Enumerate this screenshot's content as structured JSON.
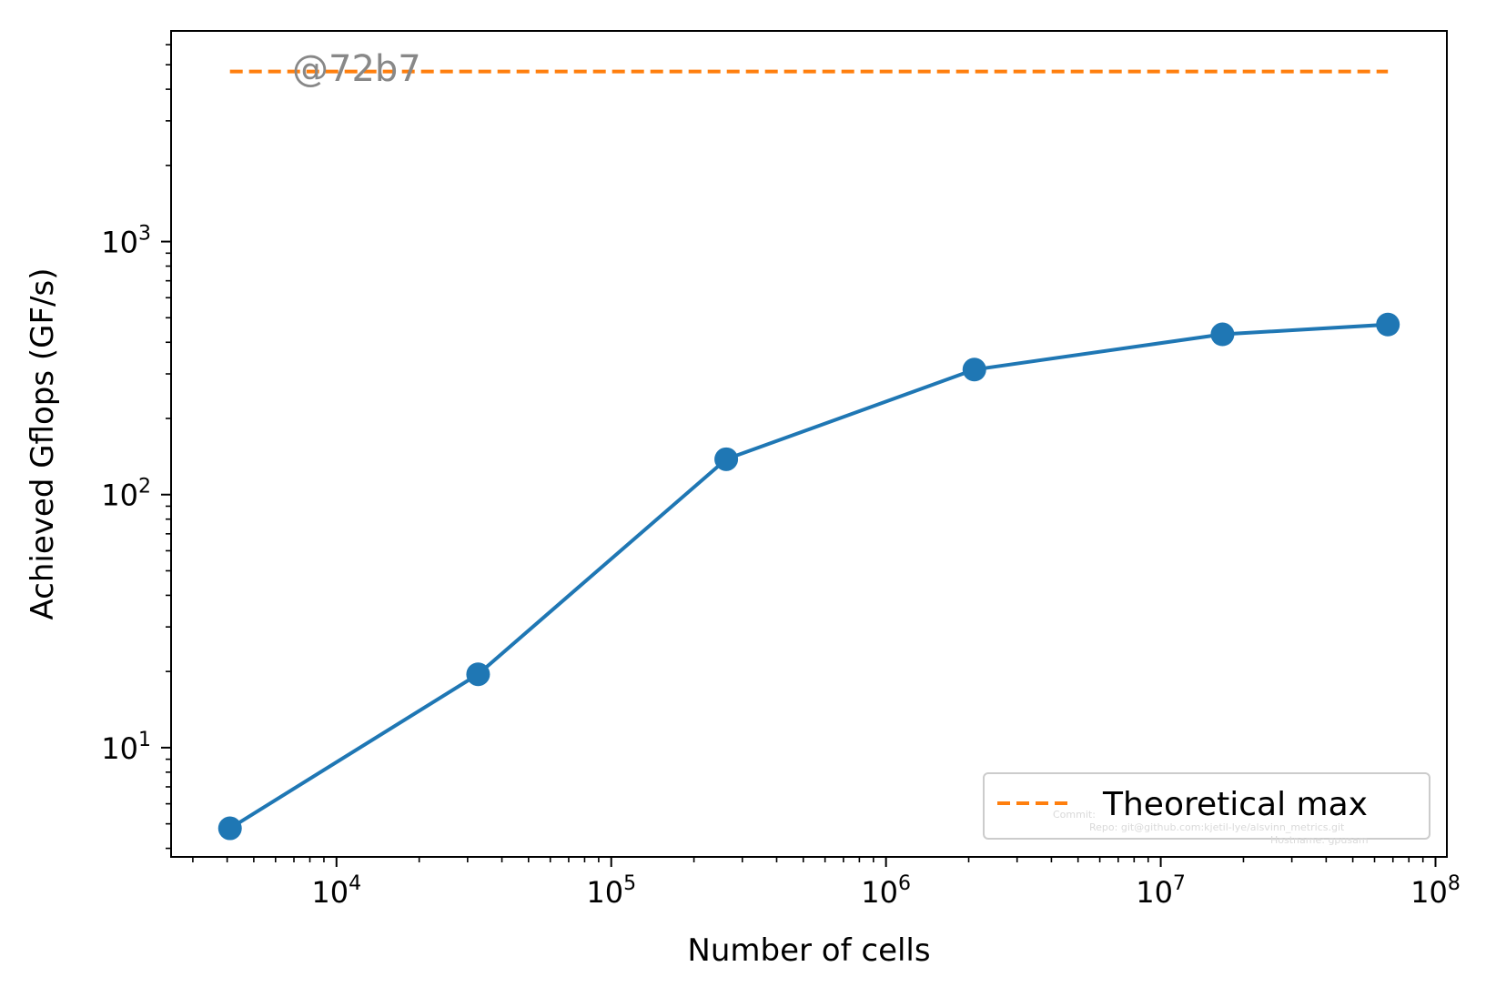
{
  "chart_data": {
    "type": "line",
    "xlabel": "Number of cells",
    "ylabel": "Achieved Gflops (GF/s)",
    "xscale": "log",
    "yscale": "log",
    "xlim": [
      2500,
      110000000
    ],
    "ylim": [
      3.7,
      6800
    ],
    "x_ticks": [
      {
        "base": "10",
        "exp": "4",
        "value": 10000
      },
      {
        "base": "10",
        "exp": "5",
        "value": 100000
      },
      {
        "base": "10",
        "exp": "6",
        "value": 1000000
      },
      {
        "base": "10",
        "exp": "7",
        "value": 10000000
      },
      {
        "base": "10",
        "exp": "8",
        "value": 100000000
      }
    ],
    "y_ticks": [
      {
        "base": "10",
        "exp": "1",
        "value": 10
      },
      {
        "base": "10",
        "exp": "2",
        "value": 100
      },
      {
        "base": "10",
        "exp": "3",
        "value": 1000
      }
    ],
    "series": [
      {
        "name": "",
        "color": "#1f77b4",
        "style": "solid-with-markers",
        "x": [
          4096,
          32768,
          262144,
          2097152,
          16777216,
          67108864
        ],
        "y": [
          4.8,
          19.5,
          138,
          312,
          430,
          470
        ]
      },
      {
        "name": "Theoretical max",
        "color": "#ff7f0e",
        "style": "dashed",
        "x": [
          4096,
          67108864
        ],
        "y": [
          4700,
          4700
        ]
      }
    ],
    "legend": {
      "position": "lower-right",
      "entries": [
        {
          "label": "Theoretical max",
          "color": "#ff7f0e",
          "style": "dashed"
        }
      ]
    },
    "grid": false
  },
  "annotations": {
    "watermark": "@72b7",
    "faint_lines": [
      "Commit: ",
      "Repo: git@github.com:kjetil-lye/alsvinn_metrics.git",
      "Hostname: gpusam"
    ]
  }
}
